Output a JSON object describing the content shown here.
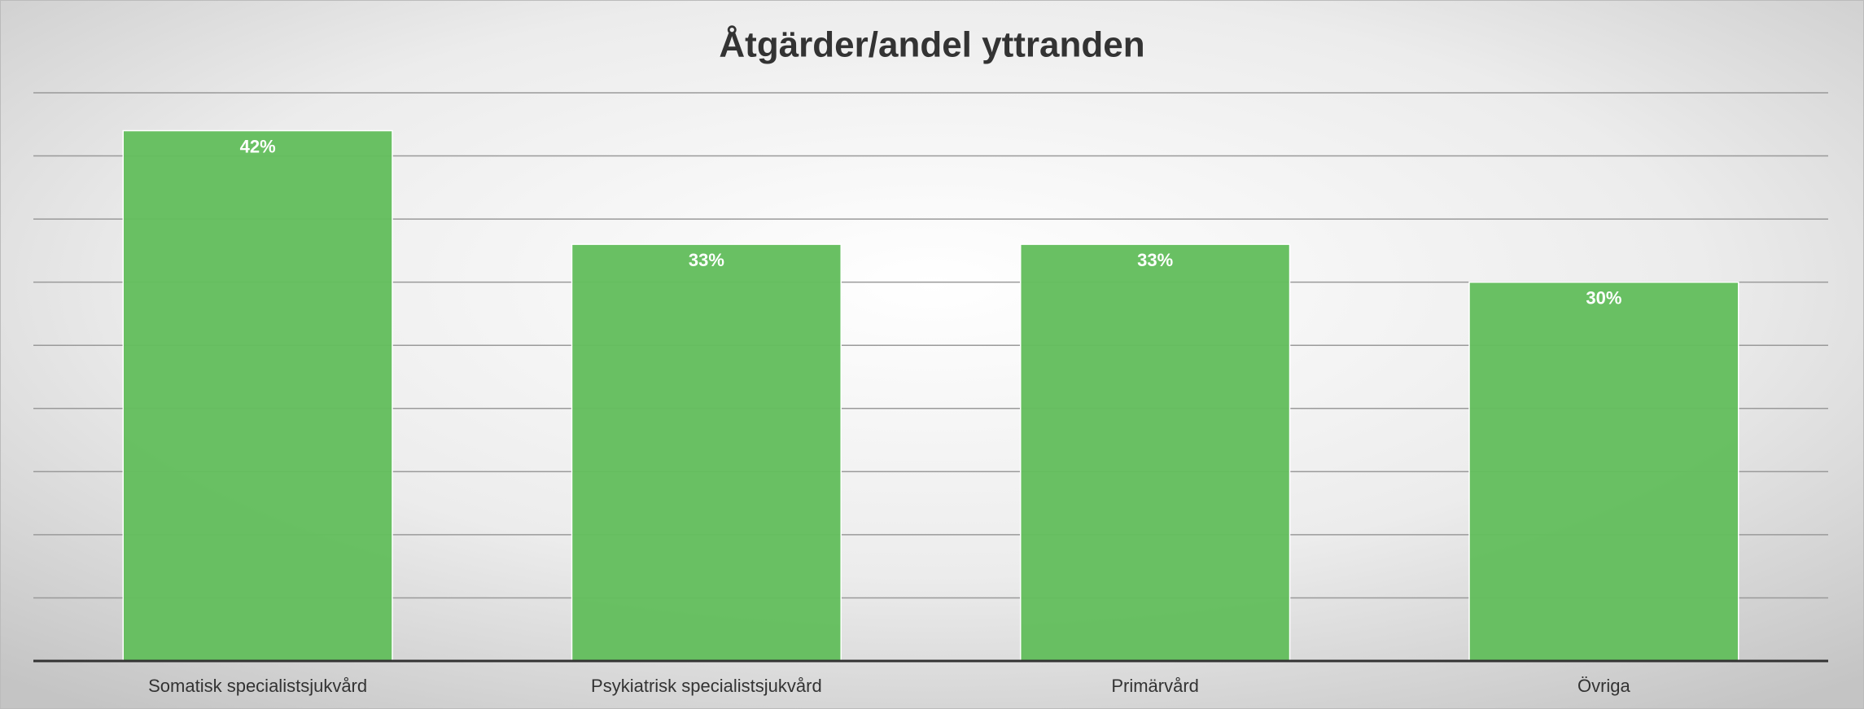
{
  "chart_data": {
    "type": "bar",
    "title": "Åtgärder/andel yttranden",
    "categories": [
      "Somatisk specialistsjukvård",
      "Psykiatrisk specialistsjukvård",
      "Primärvård",
      "Övriga"
    ],
    "values": [
      42,
      33,
      33,
      30
    ],
    "value_labels": [
      "42%",
      "33%",
      "33%",
      "30%"
    ],
    "color": "#64be5e",
    "ylim": [
      0,
      45
    ],
    "yticks": [
      0,
      5,
      10,
      15,
      20,
      25,
      30,
      35,
      40,
      45
    ],
    "grid": true
  }
}
